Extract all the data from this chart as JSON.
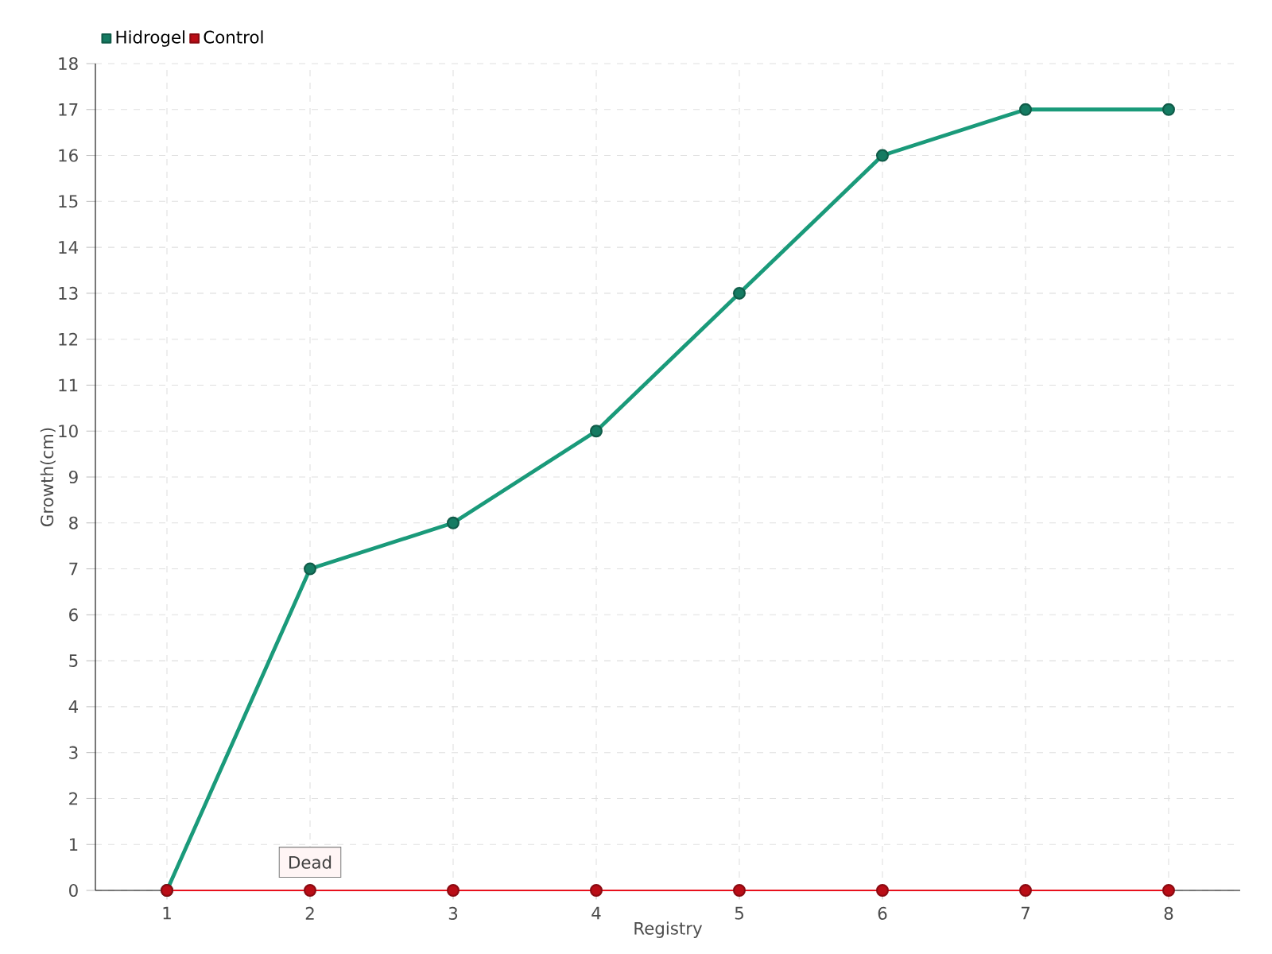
{
  "chart_data": {
    "type": "line",
    "xlabel": "Registry",
    "ylabel": "Growth(cm)",
    "x": [
      1,
      2,
      3,
      4,
      5,
      6,
      7,
      8
    ],
    "series": [
      {
        "name": "Hidrogel",
        "color": "#1a9a7a",
        "values": [
          0,
          7,
          8,
          10,
          13,
          16,
          17,
          17
        ]
      },
      {
        "name": "Control",
        "color": "#e8101c",
        "values": [
          0,
          0,
          0,
          0,
          0,
          0,
          0,
          0
        ]
      }
    ],
    "xlim": [
      0.5,
      8.5
    ],
    "xticks": [
      1,
      2,
      3,
      4,
      5,
      6,
      7,
      8
    ],
    "ylim": [
      0,
      18
    ],
    "yticks": [
      0,
      1,
      2,
      3,
      4,
      5,
      6,
      7,
      8,
      9,
      10,
      11,
      12,
      13,
      14,
      15,
      16,
      17,
      18
    ],
    "grid": true,
    "legend": "top left",
    "marker": "circle",
    "line_style": "solid",
    "annotations": [
      {
        "text": "Dead",
        "x": 2,
        "y": 0
      }
    ]
  }
}
